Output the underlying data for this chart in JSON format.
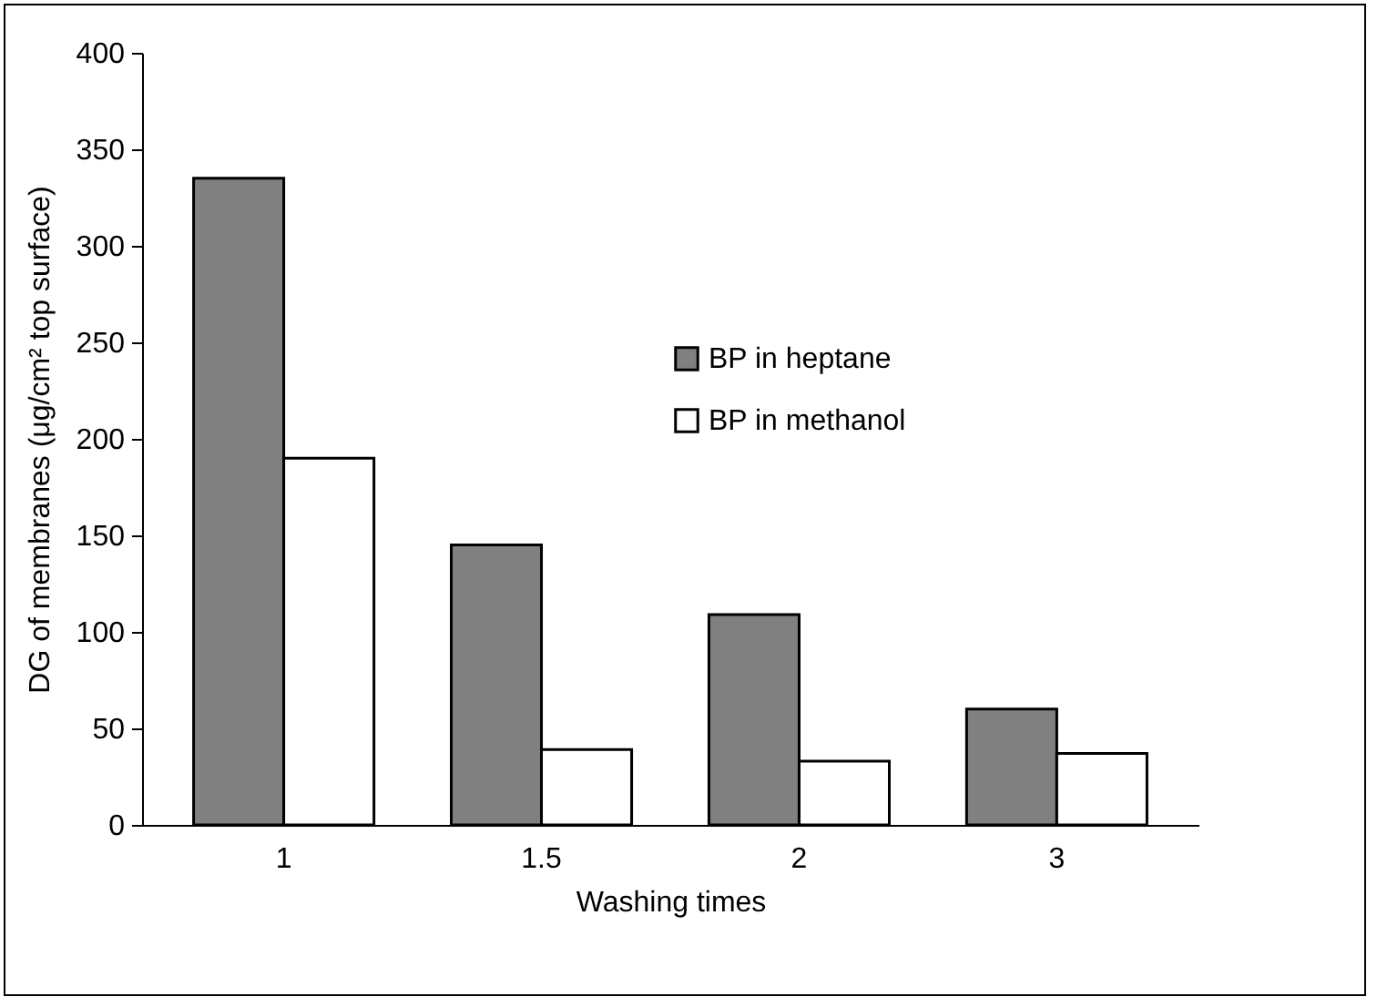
{
  "chart_data": {
    "type": "bar",
    "xlabel": "Washing times",
    "ylabel": "DG of membranes (μg/cm² top surface)",
    "categories": [
      "1",
      "1.5",
      "2",
      "3"
    ],
    "series": [
      {
        "name": "BP in heptane",
        "color": "#808080",
        "values": [
          335,
          145,
          109,
          60
        ]
      },
      {
        "name": "BP in methanol",
        "color": "#ffffff",
        "values": [
          190,
          39,
          33,
          37
        ]
      }
    ],
    "ylim": [
      0,
      400
    ],
    "yticks": [
      0,
      50,
      100,
      150,
      200,
      250,
      300,
      350,
      400
    ],
    "grid": false,
    "legend": "top right"
  }
}
